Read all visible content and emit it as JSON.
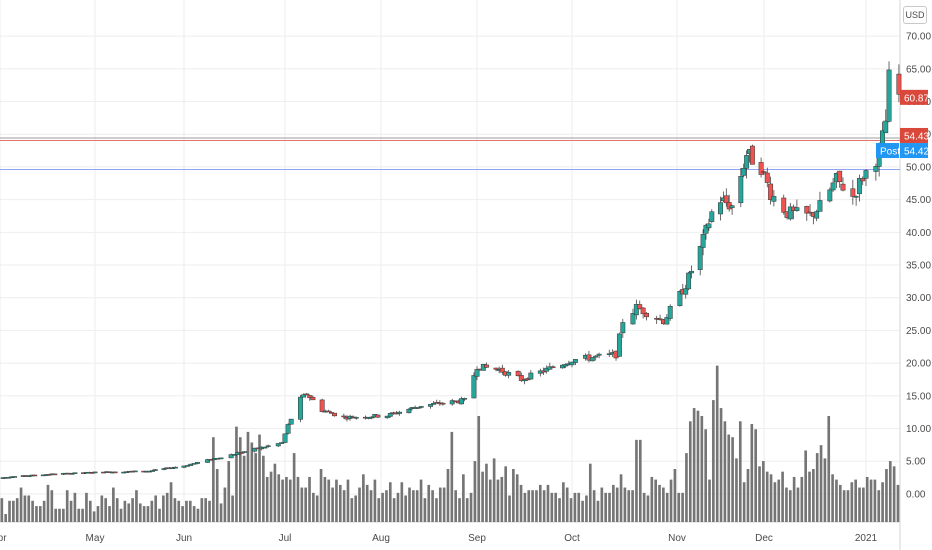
{
  "currency_label": "USD",
  "colors": {
    "up": "#26a69a",
    "down": "#ef5350",
    "volume": "#757575",
    "last_badge": "#d9483b",
    "post_badge": "#2196f3",
    "grid": "#eeeeee",
    "line_gray": "#9e9e9e",
    "line_red": "#e57373",
    "line_blue": "#90a4f4"
  },
  "badges": {
    "last": {
      "value_label": "60.87",
      "price": 60.87
    },
    "reference": {
      "value_label": "54.43",
      "price": 54.43
    },
    "post": {
      "tag": "Post",
      "value_label": "54.42",
      "price": 54.42
    }
  },
  "chart_data": {
    "type": "candlestick",
    "y_axis_ticks": [
      "70.00",
      "65.00",
      "60.00",
      "55.00",
      "50.00",
      "45.00",
      "40.00",
      "35.00",
      "30.00",
      "25.00",
      "20.00",
      "15.00",
      "10.00",
      "5.00",
      "0.00"
    ],
    "ylim": [
      -4.3,
      74
    ],
    "x_axis_labels": [
      "Apr",
      "May",
      "Jun",
      "Jul",
      "Aug",
      "Sep",
      "Oct",
      "Nov",
      "Dec",
      "2021"
    ],
    "month_starts": [
      "2020-04-01",
      "2020-05-01",
      "2020-06-01",
      "2020-07-01",
      "2020-08-01",
      "2020-09-01",
      "2020-10-01",
      "2020-11-01",
      "2020-12-01",
      "2021-01-01"
    ],
    "grid": true,
    "horizontal_lines": [
      54.43,
      54.42,
      49.6
    ],
    "volume_overlay": true,
    "price_points": [
      [
        "2020-03-25",
        2.4
      ],
      [
        "2020-04-15",
        3.0
      ],
      [
        "2020-05-01",
        3.3
      ],
      [
        "2020-05-20",
        3.5
      ],
      [
        "2020-06-01",
        4.3
      ],
      [
        "2020-06-15",
        6.0
      ],
      [
        "2020-06-30",
        7.8
      ],
      [
        "2020-07-02",
        10.5
      ],
      [
        "2020-07-06",
        14.5
      ],
      [
        "2020-07-08",
        15.3
      ],
      [
        "2020-07-13",
        12.8
      ],
      [
        "2020-07-20",
        11.7
      ],
      [
        "2020-08-03",
        12.0
      ],
      [
        "2020-08-14",
        13.5
      ],
      [
        "2020-08-28",
        14.3
      ],
      [
        "2020-09-01",
        19.5
      ],
      [
        "2020-09-08",
        19.0
      ],
      [
        "2020-09-15",
        17.5
      ],
      [
        "2020-10-01",
        20.5
      ],
      [
        "2020-10-14",
        21.3
      ],
      [
        "2020-10-16",
        26.5
      ],
      [
        "2020-10-20",
        28.5
      ],
      [
        "2020-10-28",
        26.5
      ],
      [
        "2020-11-04",
        32.0
      ],
      [
        "2020-11-09",
        37.5
      ],
      [
        "2020-11-13",
        43.0
      ],
      [
        "2020-11-16",
        45.0
      ],
      [
        "2020-11-20",
        44.0
      ],
      [
        "2020-11-25",
        52.0
      ],
      [
        "2020-11-30",
        50.0
      ],
      [
        "2020-12-03",
        46.0
      ],
      [
        "2020-12-08",
        43.0
      ],
      [
        "2020-12-15",
        42.5
      ],
      [
        "2020-12-18",
        44.0
      ],
      [
        "2020-12-23",
        48.0
      ],
      [
        "2020-12-28",
        45.5
      ],
      [
        "2020-12-31",
        48.5
      ],
      [
        "2021-01-05",
        52.0
      ],
      [
        "2021-01-07",
        57.0
      ],
      [
        "2021-01-08",
        63.5
      ],
      [
        "2021-01-11",
        60.87
      ]
    ],
    "volume_values": [
      0.9,
      0.3,
      0.8,
      0.8,
      0.9,
      1.3,
      1.0,
      1.0,
      0.8,
      0.6,
      0.6,
      0.8,
      1.4,
      1.2,
      0.5,
      0.5,
      0.5,
      1.2,
      0.8,
      1.1,
      0.5,
      0.5,
      1.1,
      0.8,
      0.4,
      0.6,
      1.0,
      0.9,
      0.6,
      1.3,
      0.9,
      0.5,
      0.8,
      0.7,
      0.9,
      1.2,
      0.7,
      0.6,
      0.6,
      0.8,
      1.0,
      0.5,
      1.0,
      1.1,
      1.5,
      0.9,
      0.8,
      0.6,
      0.8,
      0.8,
      0.6,
      0.5,
      0.9,
      0.9,
      0.8,
      3.2,
      2.0,
      0.7,
      1.3,
      2.3,
      1.0,
      3.6,
      3.2,
      2.5,
      3.4,
      3.0,
      2.6,
      3.3,
      2.5,
      1.7,
      1.9,
      2.2,
      1.8,
      1.6,
      1.7,
      1.6,
      2.6,
      1.7,
      1.3,
      1.3,
      1.7,
      1.1,
      1.0,
      2.0,
      1.7,
      1.6,
      1.3,
      1.6,
      1.4,
      1.2,
      1.6,
      0.9,
      1.0,
      1.3,
      1.8,
      1.4,
      1.2,
      1.6,
      0.9,
      1.1,
      1.2,
      1.5,
      0.9,
      1.1,
      1.5,
      1.0,
      1.3,
      1.2,
      1.2,
      1.6,
      0.9,
      1.4,
      1.2,
      0.9,
      1.3,
      1.3,
      2.0,
      3.4,
      1.2,
      0.9,
      1.8,
      0.9,
      1.1,
      2.3,
      4.0,
      1.9,
      2.2,
      1.6,
      2.4,
      1.6,
      1.7,
      2.1,
      1.0,
      2.0,
      1.8,
      1.4,
      1.1,
      1.2,
      1.2,
      1.2,
      1.4,
      1.2,
      1.4,
      1.1,
      1.1,
      0.9,
      1.5,
      1.3,
      0.9,
      1.1,
      1.1,
      0.8,
      1.0,
      2.2,
      1.2,
      0.8,
      1.3,
      1.1,
      1.1,
      1.4,
      1.3,
      1.8,
      1.3,
      1.2,
      1.2,
      3.1,
      3.1,
      1.1,
      1.0,
      1.7,
      1.6,
      1.4,
      1.3,
      1.1,
      1.6,
      2.0,
      1.1,
      1.1,
      2.6,
      3.8,
      4.3,
      4.2,
      4.0,
      3.5,
      1.6,
      4.6,
      5.9,
      4.3,
      3.8,
      3.3,
      3.2,
      2.4,
      3.8,
      1.5,
      2.0,
      3.7,
      3.5,
      2.1,
      2.3,
      1.9,
      1.8,
      1.5,
      1.6,
      1.9,
      1.3,
      1.2,
      1.7,
      1.3,
      1.7,
      2.7,
      1.9,
      2.0,
      2.6,
      2.9,
      2.4,
      4.0,
      1.8,
      1.6,
      1.4,
      1.2,
      1.2,
      1.5,
      1.6,
      1.3,
      1.3,
      1.7,
      1.6,
      1.6,
      1.2,
      1.5,
      2.0,
      2.3,
      2.1,
      1.4
    ]
  }
}
